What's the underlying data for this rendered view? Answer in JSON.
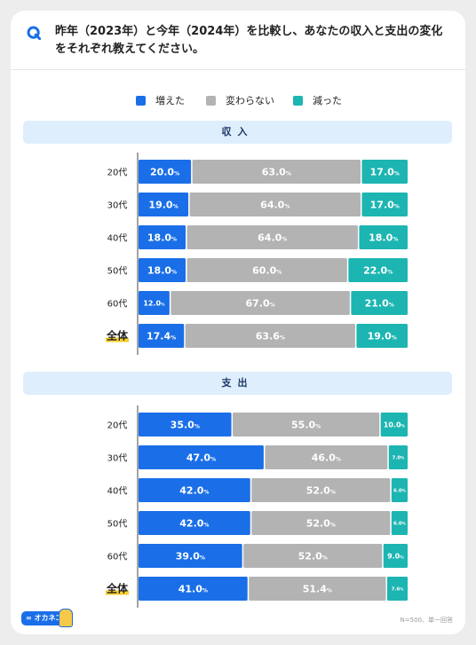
{
  "question": {
    "marker": "Q",
    "text": "昨年（2023年）と今年（2024年）を比較し、あなたの収入と支出の変化をそれぞれ教えてください。"
  },
  "legend": [
    {
      "label": "増えた",
      "color": "#1a6fe8"
    },
    {
      "label": "変わらない",
      "color": "#b3b3b3"
    },
    {
      "label": "減った",
      "color": "#1cb5b2"
    }
  ],
  "colors": {
    "increased": "#1a6fe8",
    "unchanged": "#b3b3b3",
    "decreased": "#1cb5b2",
    "highlight": "#f6cf2e"
  },
  "sections": [
    {
      "title": "収入"
    },
    {
      "title": "支出"
    }
  ],
  "chart_data": [
    {
      "type": "bar",
      "stacked": true,
      "orientation": "horizontal",
      "title": "収入",
      "categories": [
        "20代",
        "30代",
        "40代",
        "50代",
        "60代",
        "全体"
      ],
      "highlight_category": "全体",
      "unit": "%",
      "series": [
        {
          "name": "増えた",
          "values": [
            20.0,
            19.0,
            18.0,
            18.0,
            12.0,
            17.4
          ]
        },
        {
          "name": "変わらない",
          "values": [
            63.0,
            64.0,
            64.0,
            60.0,
            67.0,
            63.6
          ]
        },
        {
          "name": "減った",
          "values": [
            17.0,
            17.0,
            18.0,
            22.0,
            21.0,
            19.0
          ]
        }
      ]
    },
    {
      "type": "bar",
      "stacked": true,
      "orientation": "horizontal",
      "title": "支出",
      "categories": [
        "20代",
        "30代",
        "40代",
        "50代",
        "60代",
        "全体"
      ],
      "highlight_category": "全体",
      "unit": "%",
      "series": [
        {
          "name": "増えた",
          "values": [
            35.0,
            47.0,
            42.0,
            42.0,
            39.0,
            41.0
          ]
        },
        {
          "name": "変わらない",
          "values": [
            55.0,
            46.0,
            52.0,
            52.0,
            52.0,
            51.4
          ]
        },
        {
          "name": "減った",
          "values": [
            10.0,
            7.0,
            6.0,
            6.0,
            9.0,
            7.6
          ]
        }
      ]
    }
  ],
  "footer": {
    "logo_text": "∞ オカネコ",
    "note": "N=500、単一回答"
  }
}
